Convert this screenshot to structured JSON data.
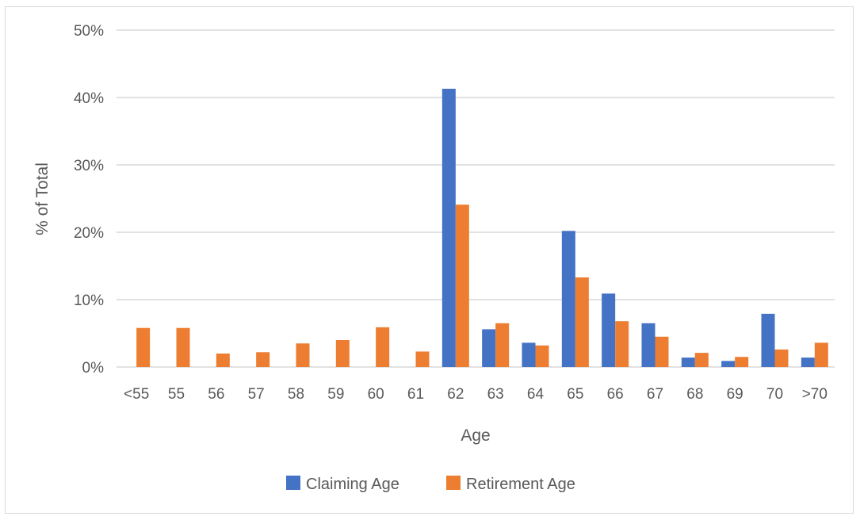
{
  "chart_data": {
    "type": "bar",
    "title": "",
    "xlabel": "Age",
    "ylabel": "% of Total",
    "ylim": [
      0,
      50
    ],
    "y_ticks": [
      0,
      10,
      20,
      30,
      40,
      50
    ],
    "y_tick_suffix": "%",
    "grid": true,
    "legend_position": "bottom",
    "categories": [
      "<55",
      "55",
      "56",
      "57",
      "58",
      "59",
      "60",
      "61",
      "62",
      "63",
      "64",
      "65",
      "66",
      "67",
      "68",
      "69",
      "70",
      ">70"
    ],
    "series": [
      {
        "name": "Claiming Age",
        "color": "#4472c4",
        "values": [
          0,
          0,
          0,
          0,
          0,
          0,
          0,
          0,
          41.3,
          5.6,
          3.6,
          20.2,
          10.9,
          6.5,
          1.4,
          0.9,
          7.9,
          1.4
        ]
      },
      {
        "name": "Retirement Age",
        "color": "#ed7d31",
        "values": [
          5.8,
          5.8,
          2.0,
          2.2,
          3.5,
          4.0,
          5.9,
          2.3,
          24.1,
          6.5,
          3.2,
          13.3,
          6.8,
          4.5,
          2.1,
          1.5,
          2.6,
          3.6
        ]
      }
    ]
  }
}
